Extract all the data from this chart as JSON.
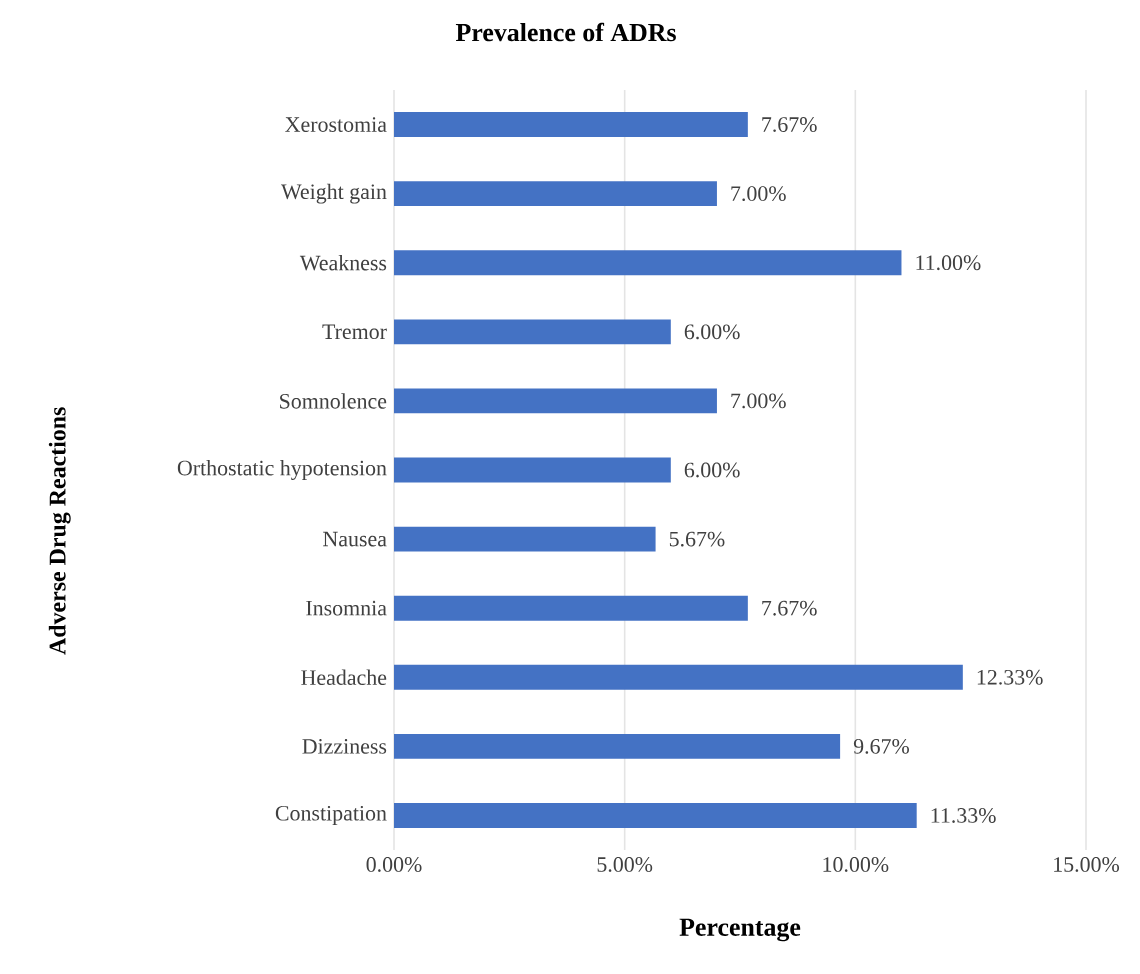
{
  "chart_data": {
    "type": "bar",
    "orientation": "horizontal",
    "title": "Prevalence of ADRs",
    "xlabel": "Percentage",
    "ylabel": "Adverse Drug Reactions",
    "categories": [
      "Xerostomia",
      "Weight gain",
      "Weakness",
      "Tremor",
      "Somnolence",
      "Orthostatic hypotension",
      "Nausea",
      "Insomnia",
      "Headache",
      "Dizziness",
      "Constipation"
    ],
    "values": [
      7.67,
      7.0,
      11.0,
      6.0,
      7.0,
      6.0,
      5.67,
      7.67,
      12.33,
      9.67,
      11.33
    ],
    "value_labels": [
      "7.67%",
      "7.00%",
      "11.00%",
      "6.00%",
      "7.00%",
      "6.00%",
      "5.67%",
      "7.67%",
      "12.33%",
      "9.67%",
      "11.33%"
    ],
    "color": "#4472c4",
    "xlim": [
      0,
      15
    ],
    "xticks": [
      {
        "value": 0,
        "label": "0.00%"
      },
      {
        "value": 5,
        "label": "5.00%"
      },
      {
        "value": 10,
        "label": "10.00%"
      },
      {
        "value": 15,
        "label": "15.00%"
      }
    ],
    "grid": "x"
  }
}
